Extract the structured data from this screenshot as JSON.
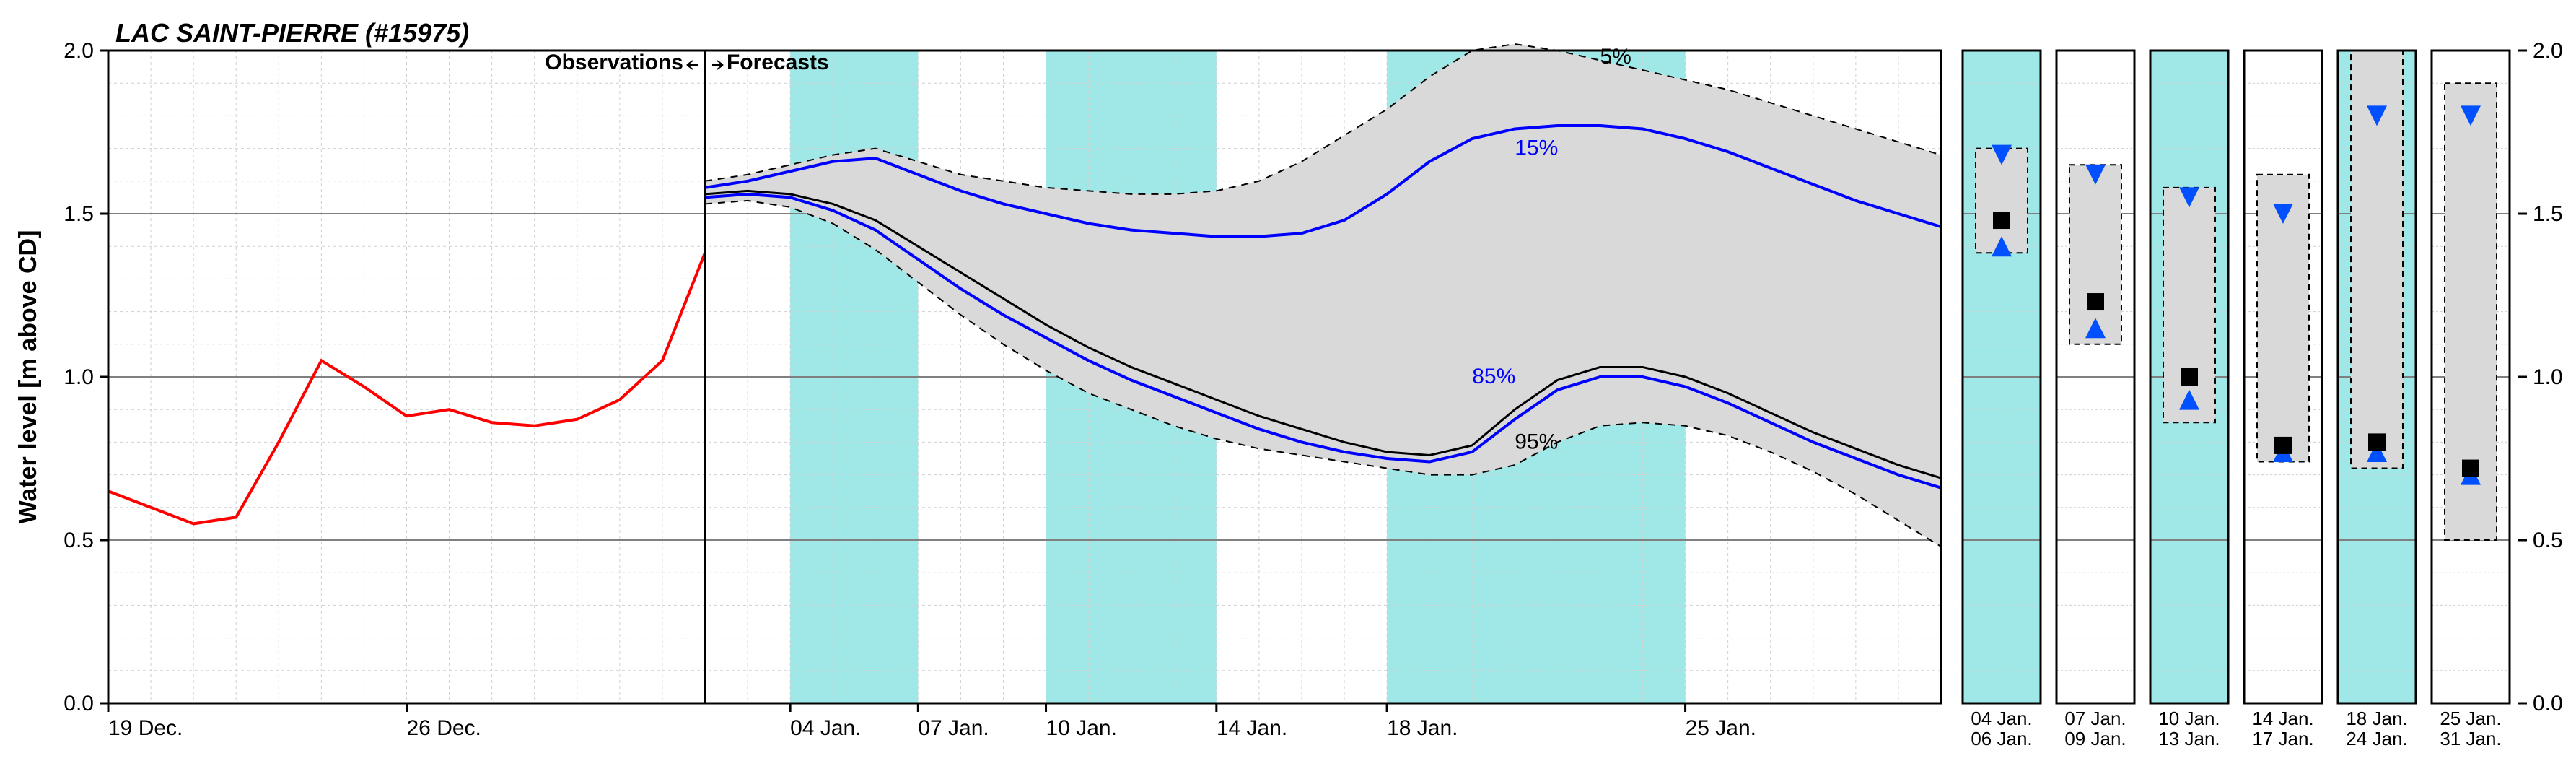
{
  "title": "LAC SAINT-PIERRE (#15975)",
  "ylabel": "Water level [m above CD]",
  "observations_label": "Observations",
  "forecasts_label": "Forecasts",
  "percentile_labels": {
    "p5": "5%",
    "p15": "15%",
    "p85": "85%",
    "p95": "95%"
  },
  "colors": {
    "background": "#ffffff",
    "grid_minor": "#d0d0d0",
    "grid_major": "#808080",
    "axis": "#000000",
    "observation": "#ff0000",
    "forecast_median": "#000000",
    "forecast_blue": "#0000ff",
    "band_fill": "#d9d9d9",
    "band_dash": "#000000",
    "weekend_band": "#a0e8e8",
    "marker_black": "#000000",
    "marker_blue": "#0050ff"
  },
  "main_chart": {
    "type": "line-forecast-band",
    "ylim": [
      0.0,
      2.0
    ],
    "ytick_major": [
      0.0,
      0.5,
      1.0,
      1.5,
      2.0
    ],
    "ytick_minor_step": 0.1,
    "x_start_day": 0,
    "x_end_day": 43,
    "x_obs_end_day": 14,
    "x_ticks": [
      {
        "day": 0,
        "label": "19 Dec."
      },
      {
        "day": 7,
        "label": "26 Dec."
      },
      {
        "day": 16,
        "label": "04 Jan."
      },
      {
        "day": 19,
        "label": "07 Jan."
      },
      {
        "day": 22,
        "label": "10 Jan."
      },
      {
        "day": 26,
        "label": "14 Jan."
      },
      {
        "day": 30,
        "label": "18 Jan."
      },
      {
        "day": 37,
        "label": "25 Jan."
      }
    ],
    "weekend_bands_days": [
      [
        16,
        19
      ],
      [
        22,
        26
      ],
      [
        30,
        37
      ]
    ],
    "observations": {
      "days": [
        0,
        1,
        2,
        3,
        4,
        5,
        6,
        7,
        8,
        9,
        10,
        11,
        12,
        13,
        14
      ],
      "values": [
        0.65,
        0.6,
        0.55,
        0.57,
        0.8,
        1.05,
        0.97,
        0.88,
        0.9,
        0.86,
        0.85,
        0.87,
        0.93,
        1.05,
        1.38
      ]
    },
    "forecast": {
      "days": [
        14,
        15,
        16,
        17,
        18,
        19,
        20,
        21,
        22,
        23,
        24,
        25,
        26,
        27,
        28,
        29,
        30,
        31,
        32,
        33,
        34,
        35,
        36,
        37,
        38,
        39,
        40,
        41,
        42,
        43
      ],
      "p5": [
        1.6,
        1.62,
        1.65,
        1.68,
        1.7,
        1.66,
        1.62,
        1.6,
        1.58,
        1.57,
        1.56,
        1.56,
        1.57,
        1.6,
        1.66,
        1.74,
        1.82,
        1.92,
        2.0,
        2.02,
        2.0,
        1.97,
        1.94,
        1.91,
        1.88,
        1.84,
        1.8,
        1.76,
        1.72,
        1.68
      ],
      "p15": [
        1.58,
        1.6,
        1.63,
        1.66,
        1.67,
        1.62,
        1.57,
        1.53,
        1.5,
        1.47,
        1.45,
        1.44,
        1.43,
        1.43,
        1.44,
        1.48,
        1.56,
        1.66,
        1.73,
        1.76,
        1.77,
        1.77,
        1.76,
        1.73,
        1.69,
        1.64,
        1.59,
        1.54,
        1.5,
        1.46
      ],
      "median": [
        1.56,
        1.57,
        1.56,
        1.53,
        1.48,
        1.4,
        1.32,
        1.24,
        1.16,
        1.09,
        1.03,
        0.98,
        0.93,
        0.88,
        0.84,
        0.8,
        0.77,
        0.76,
        0.79,
        0.9,
        0.99,
        1.03,
        1.03,
        1.0,
        0.95,
        0.89,
        0.83,
        0.78,
        0.73,
        0.69
      ],
      "p85": [
        1.55,
        1.56,
        1.55,
        1.51,
        1.45,
        1.36,
        1.27,
        1.19,
        1.12,
        1.05,
        0.99,
        0.94,
        0.89,
        0.84,
        0.8,
        0.77,
        0.75,
        0.74,
        0.77,
        0.87,
        0.96,
        1.0,
        1.0,
        0.97,
        0.92,
        0.86,
        0.8,
        0.75,
        0.7,
        0.66
      ],
      "p95": [
        1.53,
        1.54,
        1.52,
        1.47,
        1.39,
        1.29,
        1.19,
        1.1,
        1.02,
        0.95,
        0.9,
        0.85,
        0.81,
        0.78,
        0.76,
        0.74,
        0.72,
        0.7,
        0.7,
        0.73,
        0.8,
        0.85,
        0.86,
        0.85,
        0.82,
        0.77,
        0.71,
        0.64,
        0.56,
        0.48
      ]
    },
    "label_positions": {
      "p5": {
        "day": 35,
        "value": 1.96
      },
      "p15": {
        "day": 33,
        "value": 1.68
      },
      "p85": {
        "day": 32,
        "value": 0.98
      },
      "p95": {
        "day": 33,
        "value": 0.78
      }
    }
  },
  "side_panels": [
    {
      "top_label": "04 Jan.",
      "bottom_label": "06 Jan.",
      "weekend": true,
      "p5": 1.7,
      "p15": 1.68,
      "median": 1.48,
      "p85": 1.4,
      "p95": 1.38
    },
    {
      "top_label": "07 Jan.",
      "bottom_label": "09 Jan.",
      "weekend": false,
      "p5": 1.65,
      "p15": 1.62,
      "median": 1.23,
      "p85": 1.15,
      "p95": 1.1
    },
    {
      "top_label": "10 Jan.",
      "bottom_label": "13 Jan.",
      "weekend": true,
      "p5": 1.58,
      "p15": 1.55,
      "median": 1.0,
      "p85": 0.93,
      "p95": 0.86
    },
    {
      "top_label": "14 Jan.",
      "bottom_label": "17 Jan.",
      "weekend": false,
      "p5": 1.62,
      "p15": 1.5,
      "median": 0.79,
      "p85": 0.77,
      "p95": 0.74
    },
    {
      "top_label": "18 Jan.",
      "bottom_label": "24 Jan.",
      "weekend": true,
      "p5": 2.0,
      "p15": 1.8,
      "median": 0.8,
      "p85": 0.77,
      "p95": 0.72
    },
    {
      "top_label": "25 Jan.",
      "bottom_label": "31 Jan.",
      "weekend": false,
      "p5": 1.9,
      "p15": 1.8,
      "median": 0.72,
      "p85": 0.7,
      "p95": 0.5
    }
  ],
  "right_axis": {
    "yticks": [
      0.0,
      0.5,
      1.0,
      1.5,
      2.0
    ]
  },
  "fontsize": {
    "title": 36,
    "axis_label": 34,
    "tick": 30,
    "annotation": 30,
    "panel_tick": 26
  },
  "line_widths": {
    "observation": 4,
    "median": 3,
    "blue": 4,
    "band_dash": 2,
    "axis": 3,
    "grid_minor": 1,
    "grid_major": 2
  }
}
